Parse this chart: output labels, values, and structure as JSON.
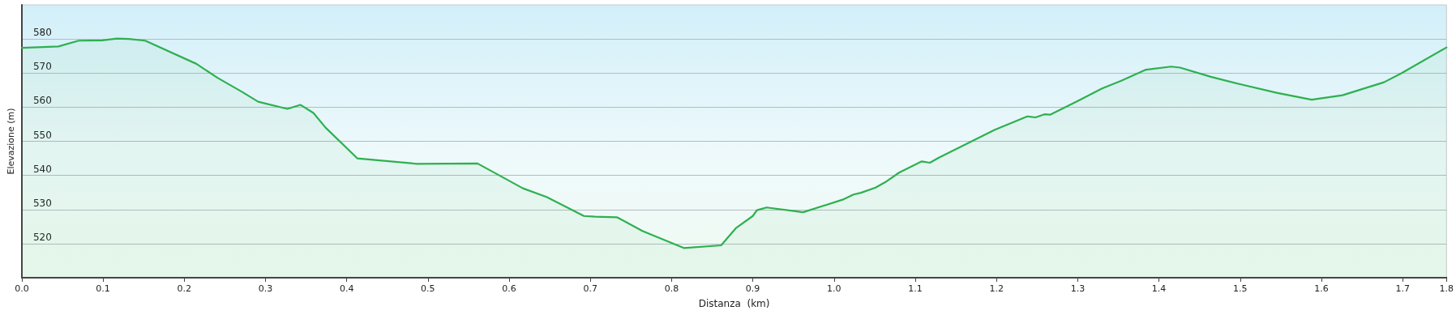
{
  "chart_data": {
    "type": "area",
    "xlabel": "Distanza  (km)",
    "ylabel": "Elevazione (m)",
    "x": [
      0,
      0.045,
      0.07,
      0.099,
      0.117,
      0.132,
      0.152,
      0.215,
      0.241,
      0.271,
      0.291,
      0.327,
      0.343,
      0.359,
      0.374,
      0.413,
      0.486,
      0.561,
      0.617,
      0.646,
      0.692,
      0.706,
      0.733,
      0.764,
      0.815,
      0.861,
      0.879,
      0.9,
      0.905,
      0.917,
      0.962,
      1.012,
      1.024,
      1.033,
      1.051,
      1.063,
      1.08,
      1.108,
      1.118,
      1.129,
      1.198,
      1.238,
      1.248,
      1.259,
      1.266,
      1.3,
      1.33,
      1.353,
      1.384,
      1.415,
      1.426,
      1.464,
      1.499,
      1.545,
      1.588,
      1.626,
      1.677,
      1.698,
      1.754
    ],
    "series": [
      {
        "color": "#2eb04f",
        "values": [
          577.4,
          577.8,
          579.5,
          579.6,
          580.1,
          580,
          579.5,
          572.7,
          568.6,
          564.5,
          561.6,
          559.5,
          560.7,
          558.3,
          554,
          545,
          543.4,
          543.5,
          536.2,
          533.7,
          528.1,
          527.9,
          527.7,
          523.7,
          518.7,
          519.5,
          524.5,
          528.1,
          529.8,
          530.6,
          529.2,
          533,
          534.4,
          534.9,
          536.4,
          538,
          540.8,
          544.1,
          543.7,
          545.2,
          553.4,
          557.3,
          557,
          557.9,
          557.8,
          561.8,
          565.5,
          567.7,
          571,
          571.9,
          571.6,
          568.9,
          566.8,
          564.2,
          562.2,
          563.5,
          567.3,
          569.9,
          577.5
        ]
      }
    ],
    "xlim": [
      0,
      1.754
    ],
    "xticks": [
      {
        "value": 0,
        "label": "0.0"
      },
      0.1,
      0.2,
      0.3,
      0.4,
      0.5,
      0.6,
      0.7,
      0.8,
      0.9,
      {
        "value": 1,
        "label": "1.0"
      },
      1.1,
      1.2,
      1.3,
      1.4,
      1.5,
      1.6,
      1.7,
      {
        "value": 1.754,
        "label": "1.8"
      }
    ],
    "ylim": [
      510,
      590
    ],
    "yticks": [
      520,
      530,
      540,
      550,
      560,
      570,
      580
    ],
    "grid": "y",
    "marker": "none",
    "line_style": "solid"
  }
}
